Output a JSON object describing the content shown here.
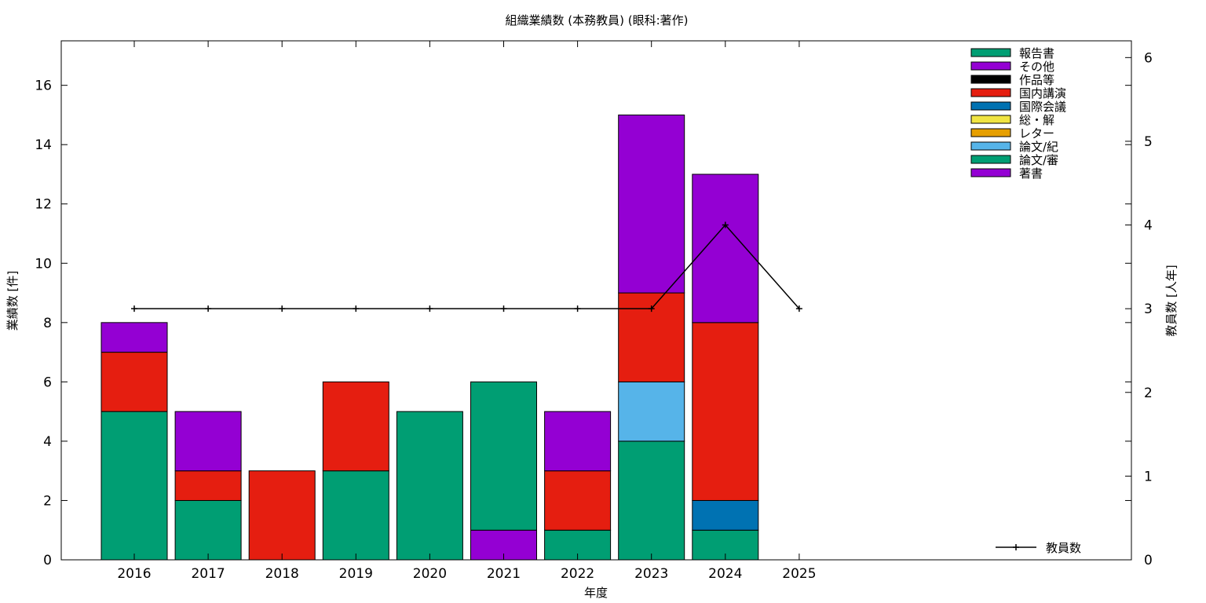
{
  "chart_data": {
    "type": "bar",
    "title": "組織業績数 (本務教員) (眼科:著作)",
    "xlabel": "年度",
    "ylabel": "業績数 [件]",
    "y2label": "教員数 [人年]",
    "ylim": [
      0,
      17.5
    ],
    "y2lim": [
      0,
      6.2
    ],
    "yticks": [
      0,
      2,
      4,
      6,
      8,
      10,
      12,
      14,
      16
    ],
    "y2ticks": [
      0,
      1,
      2,
      3,
      4,
      5,
      6
    ],
    "categories": [
      "2016",
      "2017",
      "2018",
      "2019",
      "2020",
      "2021",
      "2022",
      "2023",
      "2024",
      "2025"
    ],
    "stacked": true,
    "grid": false,
    "legend_position": "top-right",
    "series": [
      {
        "name": "著書",
        "color": "#9400d3",
        "values": [
          0,
          0,
          0,
          0,
          0,
          1,
          0,
          0,
          0,
          0
        ]
      },
      {
        "name": "論文/審",
        "color": "#009e73",
        "values": [
          5,
          2,
          0,
          3,
          5,
          5,
          1,
          4,
          1,
          0
        ]
      },
      {
        "name": "論文/紀",
        "color": "#56b4e9",
        "values": [
          0,
          0,
          0,
          0,
          0,
          0,
          0,
          2,
          0,
          0
        ]
      },
      {
        "name": "レター",
        "color": "#e69f00",
        "values": [
          0,
          0,
          0,
          0,
          0,
          0,
          0,
          0,
          0,
          0
        ]
      },
      {
        "name": "総・解",
        "color": "#f0e442",
        "values": [
          0,
          0,
          0,
          0,
          0,
          0,
          0,
          0,
          0,
          0
        ]
      },
      {
        "name": "国際会議",
        "color": "#0072b2",
        "values": [
          0,
          0,
          0,
          0,
          0,
          0,
          0,
          0,
          1,
          0
        ]
      },
      {
        "name": "国内講演",
        "color": "#e51e10",
        "values": [
          2,
          1,
          3,
          3,
          0,
          0,
          2,
          3,
          6,
          0
        ]
      },
      {
        "name": "作品等",
        "color": "#000000",
        "values": [
          0,
          0,
          0,
          0,
          0,
          0,
          0,
          0,
          0,
          0
        ]
      },
      {
        "name": "その他",
        "color": "#9400d3",
        "values": [
          1,
          2,
          0,
          0,
          0,
          0,
          2,
          6,
          5,
          0
        ]
      },
      {
        "name": "報告書",
        "color": "#009e73",
        "values": [
          0,
          0,
          0,
          0,
          0,
          0,
          0,
          0,
          0,
          0
        ]
      }
    ],
    "legend_order": [
      "報告書",
      "その他",
      "作品等",
      "国内講演",
      "国際会議",
      "総・解",
      "レター",
      "論文/紀",
      "論文/審",
      "著書"
    ],
    "line_series": {
      "name": "教員数",
      "axis": "y2",
      "color": "#000000",
      "values": [
        3,
        3,
        3,
        3,
        3,
        3,
        3,
        3,
        4,
        3
      ]
    },
    "line_legend_position": "bottom-right"
  }
}
